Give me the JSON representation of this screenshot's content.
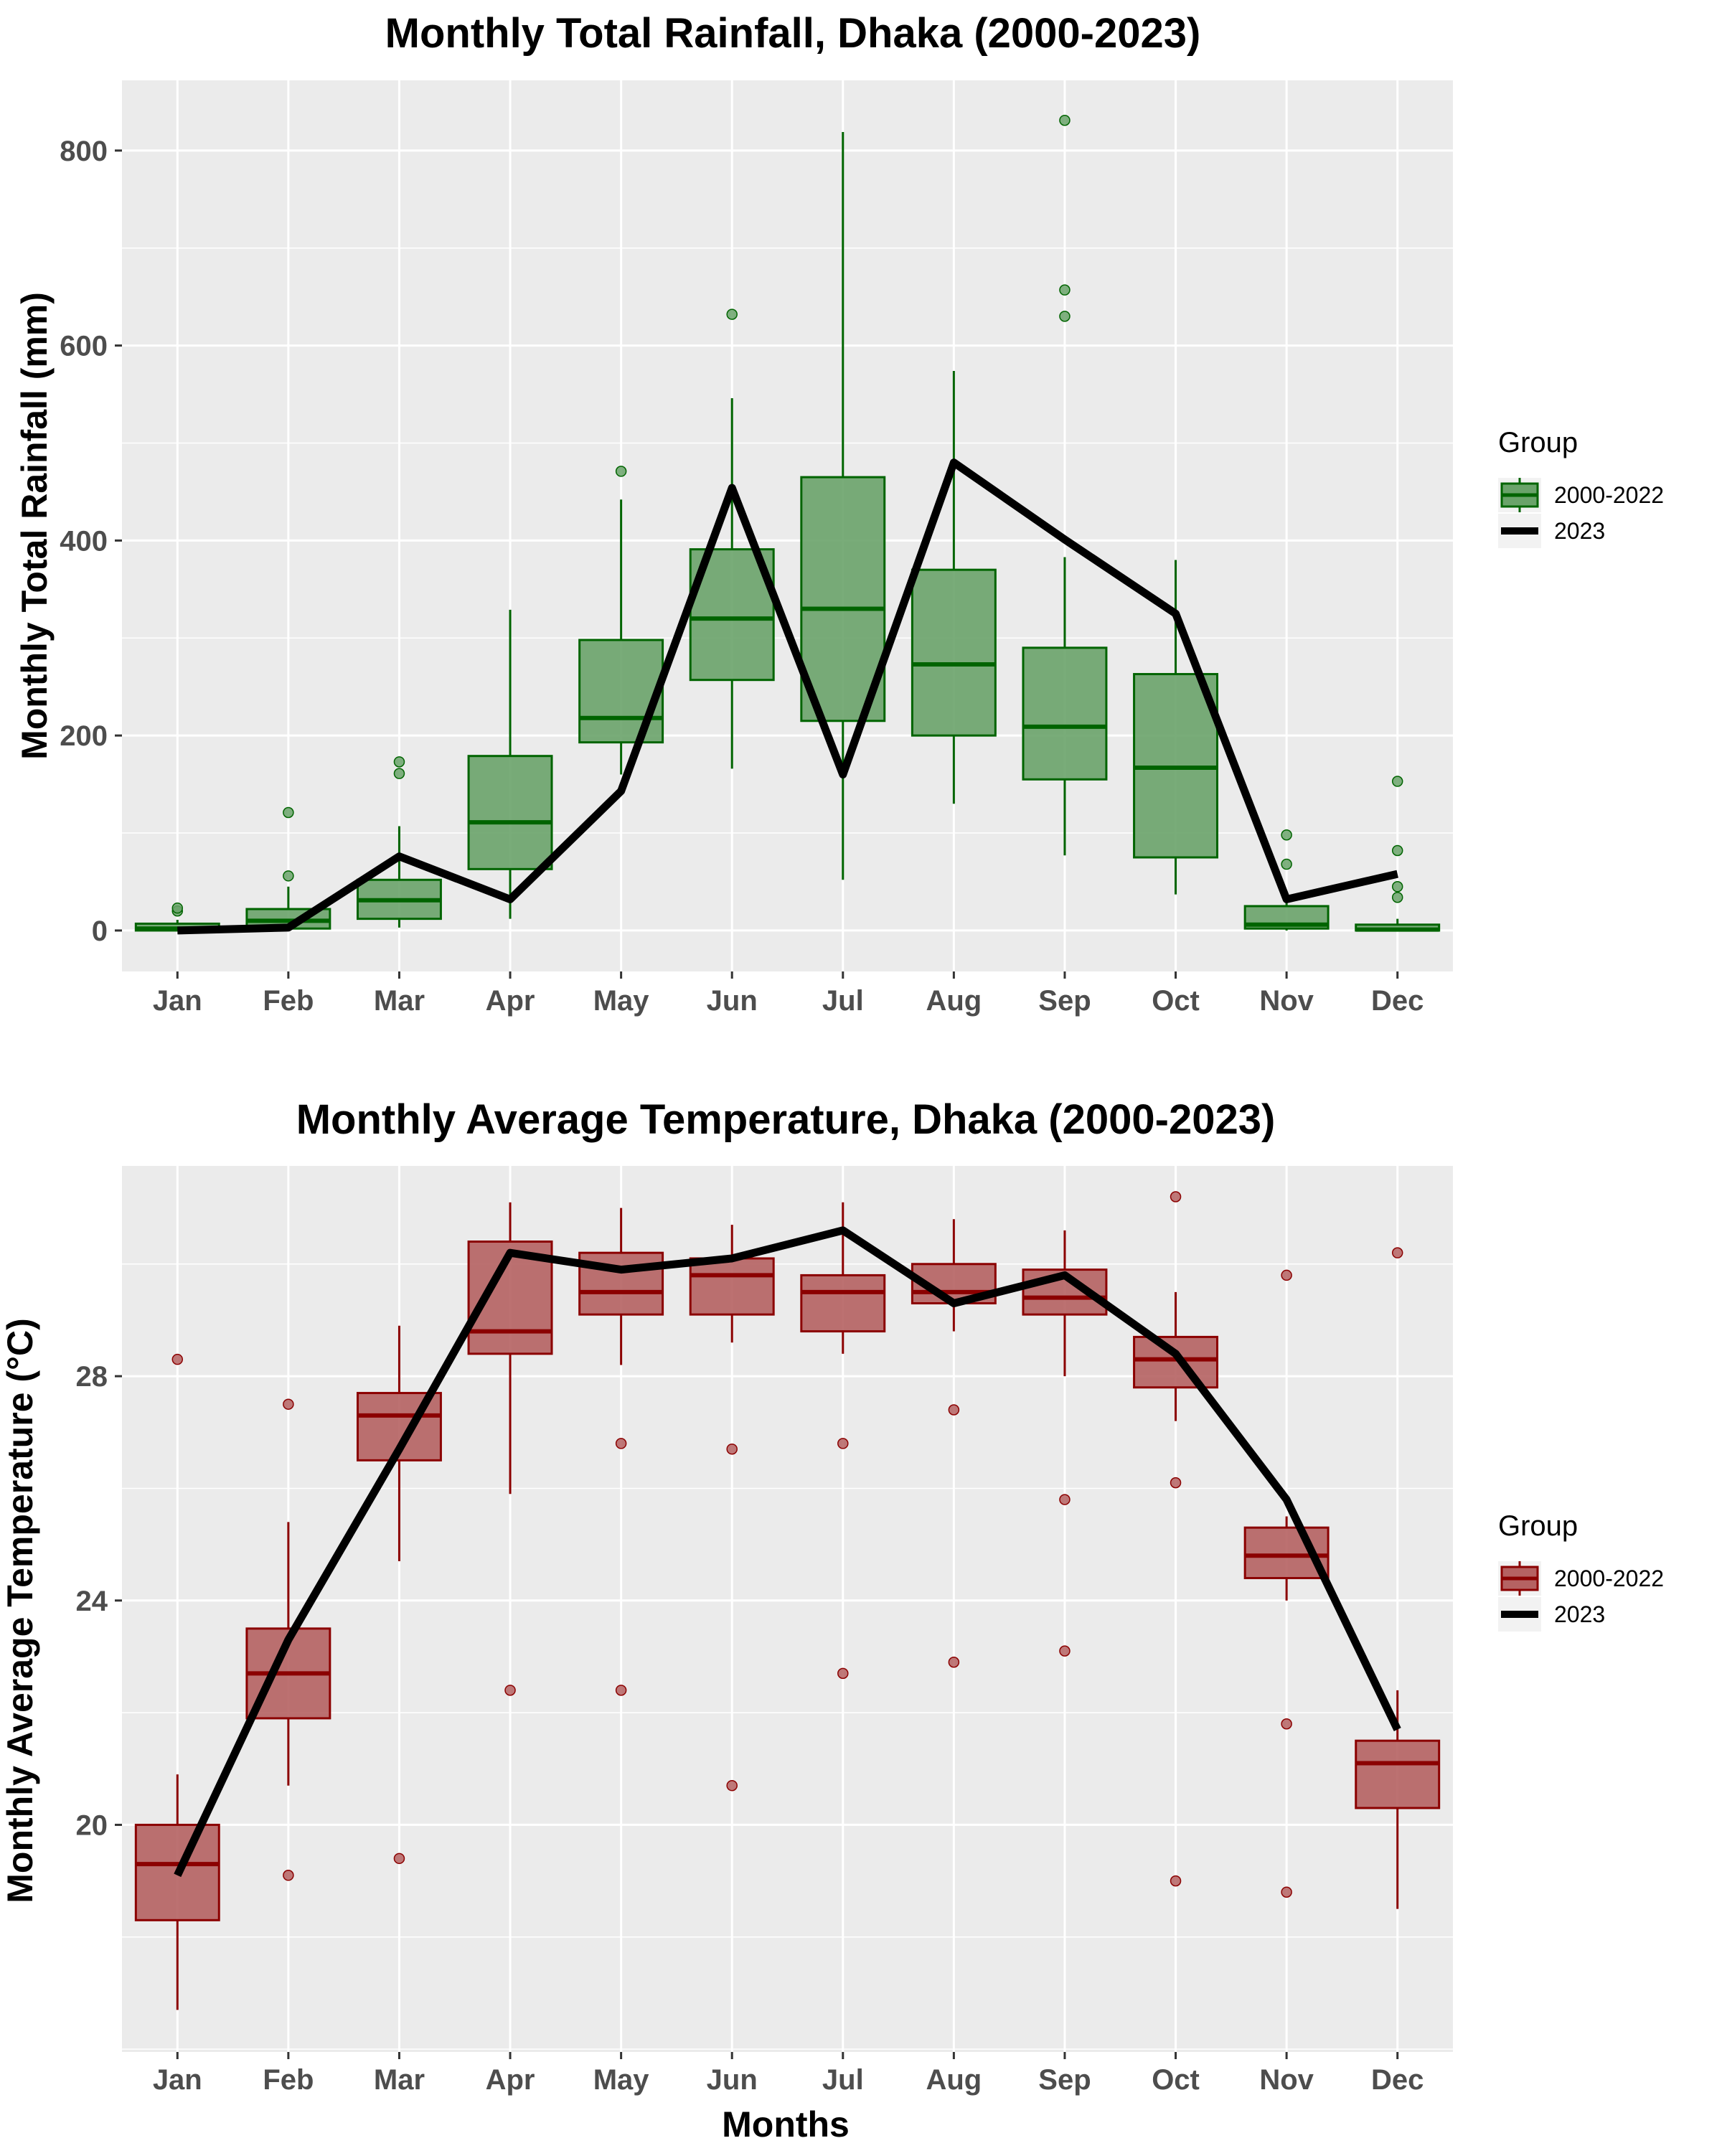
{
  "chart_data": [
    {
      "type": "box",
      "title": "Monthly Total Rainfall, Dhaka (2000-2023)",
      "xlabel": "",
      "ylabel": "Monthly Total Rainfall (mm)",
      "ylim": [
        -42,
        872
      ],
      "yticks": [
        0,
        200,
        400,
        600,
        800
      ],
      "categories": [
        "Jan",
        "Feb",
        "Mar",
        "Apr",
        "May",
        "Jun",
        "Jul",
        "Aug",
        "Sep",
        "Oct",
        "Nov",
        "Dec"
      ],
      "grid": true,
      "legend": {
        "title": "Group",
        "position": "right",
        "entries": [
          "2000-2022",
          "2023"
        ]
      },
      "colors": {
        "box_fill": "#6aa36a",
        "box_line": "#006400",
        "line": "#000000",
        "panel": "#ebebeb",
        "grid": "#ffffff"
      },
      "series": [
        {
          "name": "2000-2022",
          "boxes": [
            {
              "low": 0,
              "q1": 0,
              "median": 2,
              "q3": 7,
              "high": 11,
              "outliers": [
                20,
                23
              ]
            },
            {
              "low": 0,
              "q1": 2,
              "median": 10,
              "q3": 22,
              "high": 45,
              "outliers": [
                56,
                121
              ]
            },
            {
              "low": 3,
              "q1": 12,
              "median": 31,
              "q3": 52,
              "high": 107,
              "outliers": [
                161,
                173
              ]
            },
            {
              "low": 12,
              "q1": 63,
              "median": 111,
              "q3": 179,
              "high": 329,
              "outliers": []
            },
            {
              "low": 160,
              "q1": 193,
              "median": 218,
              "q3": 298,
              "high": 442,
              "outliers": [
                471
              ]
            },
            {
              "low": 166,
              "q1": 257,
              "median": 320,
              "q3": 391,
              "high": 546,
              "outliers": [
                632
              ]
            },
            {
              "low": 52,
              "q1": 215,
              "median": 330,
              "q3": 465,
              "high": 819,
              "outliers": []
            },
            {
              "low": 130,
              "q1": 200,
              "median": 273,
              "q3": 370,
              "high": 574,
              "outliers": []
            },
            {
              "low": 77,
              "q1": 155,
              "median": 209,
              "q3": 290,
              "high": 383,
              "outliers": [
                630,
                657,
                831
              ]
            },
            {
              "low": 37,
              "q1": 75,
              "median": 167,
              "q3": 263,
              "high": 380,
              "outliers": []
            },
            {
              "low": 0,
              "q1": 2,
              "median": 6,
              "q3": 25,
              "high": 40,
              "outliers": [
                68,
                98
              ]
            },
            {
              "low": 0,
              "q1": 0,
              "median": 1,
              "q3": 6,
              "high": 12,
              "outliers": [
                34,
                45,
                82,
                153
              ]
            }
          ]
        },
        {
          "name": "2023",
          "values": [
            0,
            3,
            76,
            32,
            143,
            454,
            160,
            480,
            401,
            325,
            32,
            58
          ]
        }
      ]
    },
    {
      "type": "box",
      "title": "Monthly Average Temperature, Dhaka (2000-2023)",
      "xlabel": "Months",
      "ylabel": "Monthly Average Temperature (°C)",
      "ylim": [
        15.95,
        31.75
      ],
      "yticks": [
        20,
        24,
        28
      ],
      "categories": [
        "Jan",
        "Feb",
        "Mar",
        "Apr",
        "May",
        "Jun",
        "Jul",
        "Aug",
        "Sep",
        "Oct",
        "Nov",
        "Dec"
      ],
      "grid": true,
      "legend": {
        "title": "Group",
        "position": "right",
        "entries": [
          "2000-2022",
          "2023"
        ]
      },
      "colors": {
        "box_fill": "#b56262",
        "box_line": "#8b0000",
        "line": "#000000",
        "panel": "#ebebeb",
        "grid": "#ffffff"
      },
      "series": [
        {
          "name": "2000-2022",
          "boxes": [
            {
              "low": 16.7,
              "q1": 18.3,
              "median": 19.3,
              "q3": 20.0,
              "high": 20.9,
              "outliers": [
                28.3
              ]
            },
            {
              "low": 20.7,
              "q1": 21.9,
              "median": 22.7,
              "q3": 23.5,
              "high": 25.4,
              "outliers": [
                19.1,
                27.5
              ]
            },
            {
              "low": 24.7,
              "q1": 26.5,
              "median": 27.3,
              "q3": 27.7,
              "high": 28.9,
              "outliers": [
                19.4
              ]
            },
            {
              "low": 25.9,
              "q1": 28.4,
              "median": 28.8,
              "q3": 30.4,
              "high": 31.1,
              "outliers": [
                22.4
              ]
            },
            {
              "low": 28.2,
              "q1": 29.1,
              "median": 29.5,
              "q3": 30.2,
              "high": 31.0,
              "outliers": [
                22.4,
                26.8
              ]
            },
            {
              "low": 28.6,
              "q1": 29.1,
              "median": 29.8,
              "q3": 30.1,
              "high": 30.7,
              "outliers": [
                20.7,
                26.7
              ]
            },
            {
              "low": 28.4,
              "q1": 28.8,
              "median": 29.5,
              "q3": 29.8,
              "high": 31.1,
              "outliers": [
                22.7,
                26.8
              ]
            },
            {
              "low": 28.8,
              "q1": 29.3,
              "median": 29.5,
              "q3": 30.0,
              "high": 30.8,
              "outliers": [
                22.9,
                27.4
              ]
            },
            {
              "low": 28.0,
              "q1": 29.1,
              "median": 29.4,
              "q3": 29.9,
              "high": 30.6,
              "outliers": [
                23.1,
                25.8
              ]
            },
            {
              "low": 27.2,
              "q1": 27.8,
              "median": 28.3,
              "q3": 28.7,
              "high": 29.5,
              "outliers": [
                19.0,
                26.1,
                31.2
              ]
            },
            {
              "low": 24.0,
              "q1": 24.4,
              "median": 24.8,
              "q3": 25.3,
              "high": 25.5,
              "outliers": [
                18.8,
                21.8,
                29.8
              ]
            },
            {
              "low": 18.5,
              "q1": 20.3,
              "median": 21.1,
              "q3": 21.5,
              "high": 22.4,
              "outliers": [
                30.2
              ]
            }
          ]
        },
        {
          "name": "2023",
          "values": [
            19.1,
            23.3,
            26.7,
            30.2,
            29.9,
            30.1,
            30.6,
            29.3,
            29.8,
            28.4,
            25.8,
            21.7
          ]
        }
      ]
    }
  ]
}
